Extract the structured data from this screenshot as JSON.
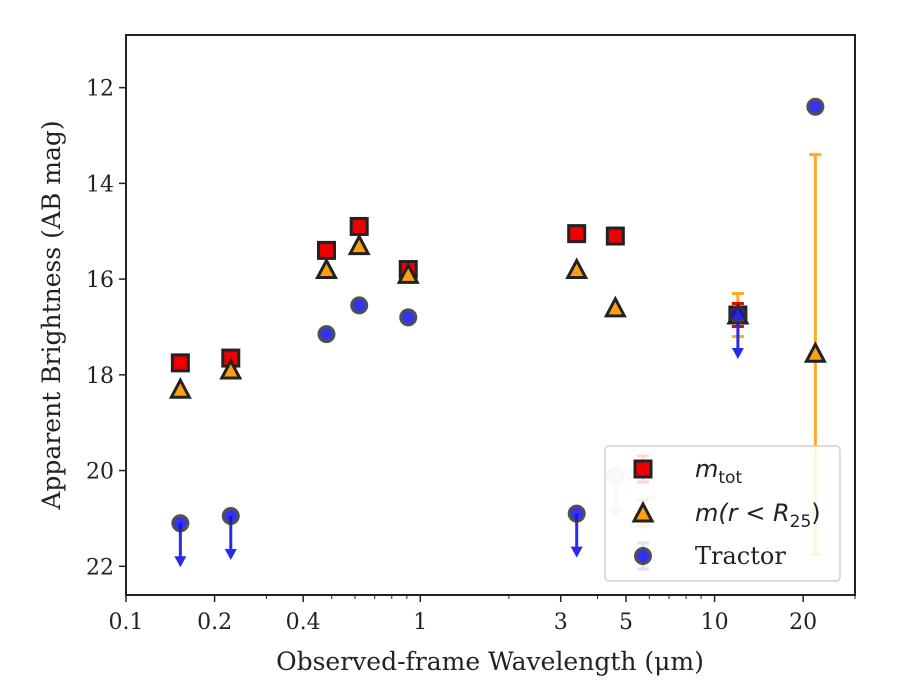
{
  "chart_data": {
    "type": "scatter",
    "xlabel": "Observed-frame Wavelength (μm)",
    "ylabel": "Apparent Brightness (AB mag)",
    "xscale": "log",
    "xlim": [
      0.1,
      30
    ],
    "ylim": [
      22.6,
      10.9
    ],
    "y_inverted": true,
    "x_ticks": [
      {
        "value": 0.1,
        "label": "0.1"
      },
      {
        "value": 0.2,
        "label": "0.2"
      },
      {
        "value": 0.4,
        "label": "0.4"
      },
      {
        "value": 1,
        "label": "1"
      },
      {
        "value": 3,
        "label": "3"
      },
      {
        "value": 5,
        "label": "5"
      },
      {
        "value": 10,
        "label": "10"
      },
      {
        "value": 20,
        "label": "20"
      }
    ],
    "y_ticks": [
      {
        "value": 12,
        "label": "12"
      },
      {
        "value": 14,
        "label": "14"
      },
      {
        "value": 16,
        "label": "16"
      },
      {
        "value": 18,
        "label": "18"
      },
      {
        "value": 20,
        "label": "20"
      },
      {
        "value": 22,
        "label": "22"
      }
    ],
    "legend_position": "lower-right",
    "grid": false,
    "series": [
      {
        "name_main": "m",
        "name_sub": "tot",
        "marker": "square",
        "color": "#ee0000",
        "points": [
          {
            "x": 0.153,
            "y": 17.75
          },
          {
            "x": 0.227,
            "y": 17.65
          },
          {
            "x": 0.48,
            "y": 15.4
          },
          {
            "x": 0.62,
            "y": 14.9
          },
          {
            "x": 0.91,
            "y": 15.8
          },
          {
            "x": 3.4,
            "y": 15.05
          },
          {
            "x": 4.6,
            "y": 15.1
          },
          {
            "x": 12.0,
            "y": 16.75,
            "err": 0.4
          }
        ]
      },
      {
        "name_main": "m(r < R",
        "name_sub": "25",
        "name_tail": ")",
        "marker": "triangle",
        "color": "#ffa010",
        "errcolor": "#ffaa22",
        "points": [
          {
            "x": 0.153,
            "y": 18.3
          },
          {
            "x": 0.227,
            "y": 17.9
          },
          {
            "x": 0.48,
            "y": 15.8
          },
          {
            "x": 0.62,
            "y": 15.3
          },
          {
            "x": 0.91,
            "y": 15.9
          },
          {
            "x": 3.4,
            "y": 15.8
          },
          {
            "x": 4.6,
            "y": 16.6
          },
          {
            "x": 12.0,
            "y": 16.75,
            "err": 0.45
          },
          {
            "x": 22.0,
            "y": 17.55,
            "errlow": 4.15,
            "errhigh": 4.2
          }
        ]
      },
      {
        "name_main": "Tractor",
        "marker": "circle",
        "color": "#1010ee",
        "points": [
          {
            "x": 0.153,
            "y": 21.1,
            "upper_limit": true
          },
          {
            "x": 0.227,
            "y": 20.95,
            "upper_limit": true
          },
          {
            "x": 0.48,
            "y": 17.15
          },
          {
            "x": 0.62,
            "y": 16.55
          },
          {
            "x": 0.91,
            "y": 16.8
          },
          {
            "x": 3.4,
            "y": 20.9,
            "upper_limit": true
          },
          {
            "x": 4.6,
            "y": 20.1,
            "upper_limit": true
          },
          {
            "x": 12.0,
            "y": 16.75,
            "upper_limit": true
          },
          {
            "x": 22.0,
            "y": 12.4
          }
        ]
      }
    ]
  }
}
